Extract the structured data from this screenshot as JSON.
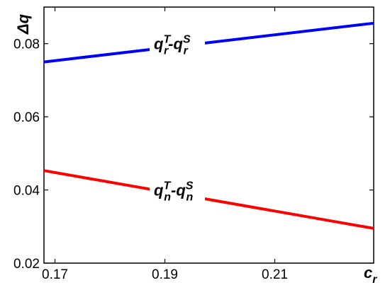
{
  "chart_data": {
    "type": "line",
    "xlabel": {
      "main": "c",
      "sub": "r"
    },
    "ylabel": "Δq",
    "xlim": [
      0.168,
      0.228
    ],
    "ylim": [
      0.02,
      0.09
    ],
    "xticks": [
      "0.17",
      "0.19",
      "0.21"
    ],
    "xtick_values": [
      0.17,
      0.19,
      0.21
    ],
    "yticks": [
      "0.02",
      "0.04",
      "0.06",
      "0.08"
    ],
    "ytick_values": [
      0.02,
      0.04,
      0.06,
      0.08
    ],
    "grid": false,
    "series": [
      {
        "label": {
          "base": "q",
          "sub": "r",
          "sup1": "T",
          "sup2": "S"
        },
        "color": "#0000ff",
        "x": [
          0.168,
          0.228
        ],
        "y": [
          0.075,
          0.0856
        ],
        "label_at": [
          0.188,
          0.0785
        ]
      },
      {
        "label": {
          "base": "q",
          "sub": "n",
          "sup1": "T",
          "sup2": "S"
        },
        "color": "#ff0000",
        "x": [
          0.168,
          0.228
        ],
        "y": [
          0.0453,
          0.0295
        ],
        "label_at": [
          0.188,
          0.0385
        ]
      }
    ]
  }
}
